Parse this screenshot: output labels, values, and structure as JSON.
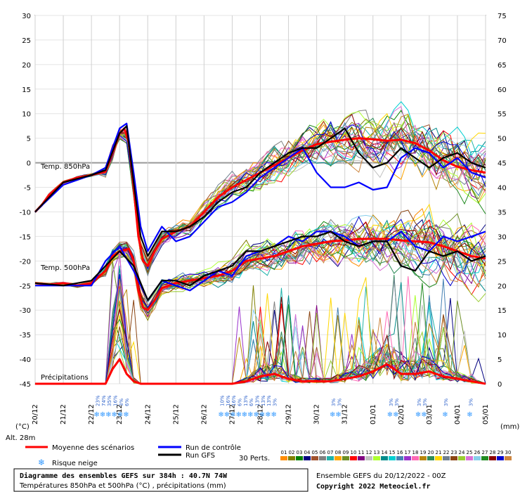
{
  "chart_data": {
    "type": "line",
    "title": "Diagramme des ensembles GEFS sur 384h : 40.7N 74W",
    "subtitle": "Températures 850hPa et 500hPa (°C) , précipitations (mm)",
    "run_info": "Ensemble GEFS du 20/12/2022 - 00Z",
    "copyright": "Copyright 2022 Meteociel.fr",
    "left_axis_unit": "(°C)",
    "right_axis_unit": "(mm)",
    "altitude": "Alt. 28m",
    "left_ticks": [
      30,
      25,
      20,
      15,
      10,
      5,
      0,
      -5,
      -10,
      -15,
      -20,
      -25,
      -30,
      -35,
      -40,
      -45
    ],
    "right_ticks": [
      75,
      70,
      65,
      60,
      55,
      50,
      45,
      40,
      35,
      30,
      25,
      20,
      15,
      10,
      5,
      0
    ],
    "ylim": [
      -45,
      30
    ],
    "precip_range": [
      0,
      75
    ],
    "x_labels": [
      "20/12",
      "21/12",
      "22/12",
      "23/12",
      "24/12",
      "25/12",
      "26/12",
      "27/12",
      "28/12",
      "29/12",
      "30/12",
      "31/12",
      "01/01",
      "02/01",
      "03/01",
      "04/01",
      "05/01"
    ],
    "x_range_hours": [
      0,
      384
    ],
    "panel_labels": {
      "t850": "Temp. 850hPa",
      "t500": "Temp. 500hPa",
      "precip": "Précipitations"
    },
    "snow_risk": [
      {
        "h": 53,
        "p": "23%"
      },
      {
        "h": 58,
        "p": "74%"
      },
      {
        "h": 63,
        "p": "35%"
      },
      {
        "h": 68,
        "p": "16%"
      },
      {
        "h": 73,
        "p": "3%"
      },
      {
        "h": 78,
        "p": "6%"
      },
      {
        "h": 159,
        "p": "10%"
      },
      {
        "h": 164,
        "p": "16%"
      },
      {
        "h": 169,
        "p": "16%"
      },
      {
        "h": 174,
        "p": "6%"
      },
      {
        "h": 179,
        "p": "13%"
      },
      {
        "h": 184,
        "p": "6%"
      },
      {
        "h": 189,
        "p": "13%"
      },
      {
        "h": 194,
        "p": "13%"
      },
      {
        "h": 199,
        "p": "13%"
      },
      {
        "h": 204,
        "p": "3%"
      },
      {
        "h": 254,
        "p": "3%"
      },
      {
        "h": 259,
        "p": "3%"
      },
      {
        "h": 303,
        "p": "3%"
      },
      {
        "h": 308,
        "p": "3%"
      },
      {
        "h": 327,
        "p": "3%"
      },
      {
        "h": 332,
        "p": "3%"
      },
      {
        "h": 350,
        "p": "3%"
      },
      {
        "h": 371,
        "p": "3%"
      }
    ],
    "series": [
      {
        "name": "Moyenne des scénarios",
        "color": "#ff0000",
        "t850": [
          [
            0,
            -10
          ],
          [
            6,
            -8.5
          ],
          [
            12,
            -6.5
          ],
          [
            24,
            -4
          ],
          [
            36,
            -3
          ],
          [
            48,
            -2.5
          ],
          [
            60,
            -1.8
          ],
          [
            66,
            2
          ],
          [
            72,
            6
          ],
          [
            76,
            7
          ],
          [
            80,
            4
          ],
          [
            84,
            -5
          ],
          [
            88,
            -15
          ],
          [
            92,
            -20
          ],
          [
            96,
            -21
          ],
          [
            102,
            -18
          ],
          [
            108,
            -15.5
          ],
          [
            120,
            -14
          ],
          [
            132,
            -13
          ],
          [
            144,
            -10
          ],
          [
            156,
            -7
          ],
          [
            168,
            -5
          ],
          [
            180,
            -3.5
          ],
          [
            192,
            -2
          ],
          [
            204,
            -0.5
          ],
          [
            216,
            1
          ],
          [
            228,
            2.5
          ],
          [
            240,
            3.8
          ],
          [
            252,
            4.3
          ],
          [
            264,
            4.7
          ],
          [
            276,
            5
          ],
          [
            288,
            4.8
          ],
          [
            300,
            4.5
          ],
          [
            312,
            4.7
          ],
          [
            324,
            4
          ],
          [
            336,
            2.5
          ],
          [
            348,
            0.5
          ],
          [
            360,
            -0.8
          ],
          [
            372,
            -1.5
          ],
          [
            384,
            -2
          ]
        ],
        "t500": [
          [
            0,
            -24.5
          ],
          [
            12,
            -24.8
          ],
          [
            24,
            -24.5
          ],
          [
            36,
            -25
          ],
          [
            48,
            -24.5
          ],
          [
            60,
            -22
          ],
          [
            66,
            -19
          ],
          [
            72,
            -18
          ],
          [
            80,
            -17.5
          ],
          [
            84,
            -20
          ],
          [
            88,
            -26
          ],
          [
            92,
            -29.5
          ],
          [
            96,
            -30
          ],
          [
            102,
            -28
          ],
          [
            108,
            -25.5
          ],
          [
            120,
            -24.5
          ],
          [
            132,
            -24
          ],
          [
            144,
            -23.5
          ],
          [
            156,
            -23
          ],
          [
            168,
            -22
          ],
          [
            180,
            -20
          ],
          [
            192,
            -19.5
          ],
          [
            204,
            -19
          ],
          [
            216,
            -18
          ],
          [
            228,
            -17
          ],
          [
            240,
            -16.5
          ],
          [
            252,
            -16
          ],
          [
            264,
            -15.8
          ],
          [
            276,
            -15.5
          ],
          [
            288,
            -15.5
          ],
          [
            300,
            -15.5
          ],
          [
            312,
            -15.8
          ],
          [
            324,
            -16
          ],
          [
            336,
            -16.2
          ],
          [
            348,
            -17
          ],
          [
            360,
            -18
          ],
          [
            372,
            -19
          ],
          [
            384,
            -19.5
          ]
        ],
        "precip": [
          [
            0,
            0
          ],
          [
            60,
            0
          ],
          [
            66,
            3
          ],
          [
            72,
            5
          ],
          [
            78,
            2
          ],
          [
            84,
            0.5
          ],
          [
            90,
            0
          ],
          [
            168,
            0
          ],
          [
            180,
            0.5
          ],
          [
            192,
            1.5
          ],
          [
            204,
            2
          ],
          [
            216,
            1
          ],
          [
            228,
            0.5
          ],
          [
            240,
            0.5
          ],
          [
            252,
            0.5
          ],
          [
            264,
            1
          ],
          [
            276,
            1.5
          ],
          [
            288,
            2.5
          ],
          [
            300,
            4
          ],
          [
            312,
            2
          ],
          [
            324,
            2
          ],
          [
            336,
            2.5
          ],
          [
            348,
            1.5
          ],
          [
            360,
            1
          ],
          [
            372,
            0.5
          ],
          [
            384,
            0
          ]
        ]
      },
      {
        "name": "Run de contrôle",
        "color": "#0000ff",
        "t850": [
          [
            0,
            -10
          ],
          [
            24,
            -4.5
          ],
          [
            48,
            -2.5
          ],
          [
            60,
            -1
          ],
          [
            72,
            7
          ],
          [
            78,
            8
          ],
          [
            84,
            -2
          ],
          [
            90,
            -13
          ],
          [
            96,
            -18
          ],
          [
            108,
            -13
          ],
          [
            120,
            -16
          ],
          [
            132,
            -15
          ],
          [
            144,
            -12
          ],
          [
            156,
            -9
          ],
          [
            168,
            -8
          ],
          [
            180,
            -6
          ],
          [
            192,
            -3
          ],
          [
            204,
            -1
          ],
          [
            216,
            1
          ],
          [
            228,
            3
          ],
          [
            240,
            -2
          ],
          [
            252,
            -5
          ],
          [
            264,
            -5
          ],
          [
            276,
            -4
          ],
          [
            288,
            -5.5
          ],
          [
            300,
            -5
          ],
          [
            312,
            1
          ],
          [
            324,
            3
          ],
          [
            336,
            2
          ],
          [
            348,
            -1
          ],
          [
            360,
            1
          ],
          [
            372,
            -2
          ],
          [
            384,
            -3
          ]
        ],
        "t500": [
          [
            0,
            -25
          ],
          [
            24,
            -25
          ],
          [
            48,
            -25
          ],
          [
            60,
            -20
          ],
          [
            72,
            -17
          ],
          [
            84,
            -22
          ],
          [
            96,
            -28
          ],
          [
            108,
            -24
          ],
          [
            120,
            -25
          ],
          [
            132,
            -26
          ],
          [
            144,
            -24
          ],
          [
            156,
            -22
          ],
          [
            168,
            -23
          ],
          [
            180,
            -19
          ],
          [
            192,
            -18
          ],
          [
            204,
            -17
          ],
          [
            216,
            -15
          ],
          [
            228,
            -16
          ],
          [
            240,
            -14
          ],
          [
            252,
            -14
          ],
          [
            264,
            -15
          ],
          [
            276,
            -17
          ],
          [
            288,
            -16
          ],
          [
            300,
            -16
          ],
          [
            312,
            -14
          ],
          [
            324,
            -17
          ],
          [
            336,
            -18
          ],
          [
            348,
            -15
          ],
          [
            360,
            -16
          ],
          [
            372,
            -15
          ],
          [
            384,
            -14
          ]
        ]
      },
      {
        "name": "Run GFS",
        "color": "#000000",
        "t850": [
          [
            0,
            -10
          ],
          [
            24,
            -4
          ],
          [
            48,
            -2.5
          ],
          [
            60,
            -1.5
          ],
          [
            72,
            6
          ],
          [
            78,
            7.5
          ],
          [
            84,
            -4
          ],
          [
            90,
            -15
          ],
          [
            96,
            -19
          ],
          [
            108,
            -14
          ],
          [
            120,
            -14
          ],
          [
            132,
            -13
          ],
          [
            144,
            -11
          ],
          [
            156,
            -8
          ],
          [
            168,
            -6
          ],
          [
            180,
            -5
          ],
          [
            192,
            -2
          ],
          [
            204,
            0
          ],
          [
            216,
            2
          ],
          [
            228,
            3
          ],
          [
            240,
            3
          ],
          [
            252,
            5
          ],
          [
            264,
            7
          ],
          [
            276,
            2
          ],
          [
            288,
            -1
          ],
          [
            300,
            0
          ],
          [
            312,
            3
          ],
          [
            324,
            1
          ],
          [
            336,
            -1
          ],
          [
            348,
            1
          ],
          [
            360,
            2
          ],
          [
            372,
            0
          ],
          [
            384,
            -1
          ]
        ],
        "t500": [
          [
            0,
            -24.5
          ],
          [
            24,
            -25
          ],
          [
            48,
            -24
          ],
          [
            60,
            -21
          ],
          [
            72,
            -18
          ],
          [
            84,
            -21
          ],
          [
            96,
            -28
          ],
          [
            108,
            -24
          ],
          [
            120,
            -24
          ],
          [
            132,
            -25
          ],
          [
            144,
            -23
          ],
          [
            156,
            -22
          ],
          [
            168,
            -21
          ],
          [
            180,
            -18
          ],
          [
            192,
            -18
          ],
          [
            204,
            -17
          ],
          [
            216,
            -16
          ],
          [
            228,
            -15
          ],
          [
            240,
            -15
          ],
          [
            252,
            -14
          ],
          [
            264,
            -16
          ],
          [
            276,
            -17
          ],
          [
            288,
            -16
          ],
          [
            300,
            -16
          ],
          [
            312,
            -21
          ],
          [
            324,
            -22
          ],
          [
            336,
            -18
          ],
          [
            348,
            -19
          ],
          [
            360,
            -18
          ],
          [
            372,
            -20
          ],
          [
            384,
            -19
          ]
        ]
      }
    ],
    "perturbations": {
      "count_label": "30 Perts.",
      "ids": [
        "01",
        "02",
        "03",
        "04",
        "05",
        "06",
        "07",
        "08",
        "09",
        "10",
        "11",
        "12",
        "13",
        "14",
        "15",
        "16",
        "17",
        "18",
        "19",
        "20",
        "21",
        "22",
        "23",
        "24",
        "25",
        "26",
        "27",
        "28",
        "29",
        "30"
      ],
      "colors": [
        "#ff8c00",
        "#808000",
        "#008000",
        "#000080",
        "#a0522d",
        "#808080",
        "#20b2aa",
        "#ffa500",
        "#6b8e23",
        "#ff0000",
        "#800080",
        "#c0c0c0",
        "#adff2f",
        "#008b8b",
        "#00ced1",
        "#4682b4",
        "#9932cc",
        "#ff69b4",
        "#b8860b",
        "#2e8b57",
        "#ffd700",
        "#708090",
        "#8b4513",
        "#9acd32",
        "#da70d6",
        "#87ceeb",
        "#228b22",
        "#8b0000",
        "#0000cd",
        "#cd853f"
      ]
    }
  },
  "legend": {
    "mean": "Moyenne des scénarios",
    "control": "Run de contrôle",
    "gfs": "Run GFS",
    "snow": "Risque neige",
    "perts": "30 Perts."
  }
}
